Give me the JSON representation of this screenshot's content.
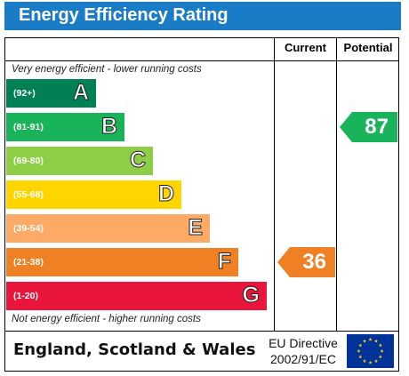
{
  "title": "Energy Efficiency Rating",
  "columns": {
    "current": "Current",
    "potential": "Potential"
  },
  "top_note": "Very energy efficient - lower running costs",
  "bottom_note": "Not energy efficient - higher running costs",
  "bands": [
    {
      "range": "(92+)",
      "letter": "A",
      "color": "#008054"
    },
    {
      "range": "(81-91)",
      "letter": "B",
      "color": "#19b459"
    },
    {
      "range": "(69-80)",
      "letter": "C",
      "color": "#8dce46"
    },
    {
      "range": "(55-68)",
      "letter": "D",
      "color": "#ffd500"
    },
    {
      "range": "(39-54)",
      "letter": "E",
      "color": "#fcaa65"
    },
    {
      "range": "(21-38)",
      "letter": "F",
      "color": "#ef8023"
    },
    {
      "range": "(1-20)",
      "letter": "G",
      "color": "#e9153b"
    }
  ],
  "current": {
    "value": "36",
    "band": "F",
    "color": "#ef8023"
  },
  "potential": {
    "value": "87",
    "band": "B",
    "color": "#19b459"
  },
  "footer": {
    "country": "England, Scotland & Wales",
    "directive_line1": "EU Directive",
    "directive_line2": "2002/91/EC"
  }
}
